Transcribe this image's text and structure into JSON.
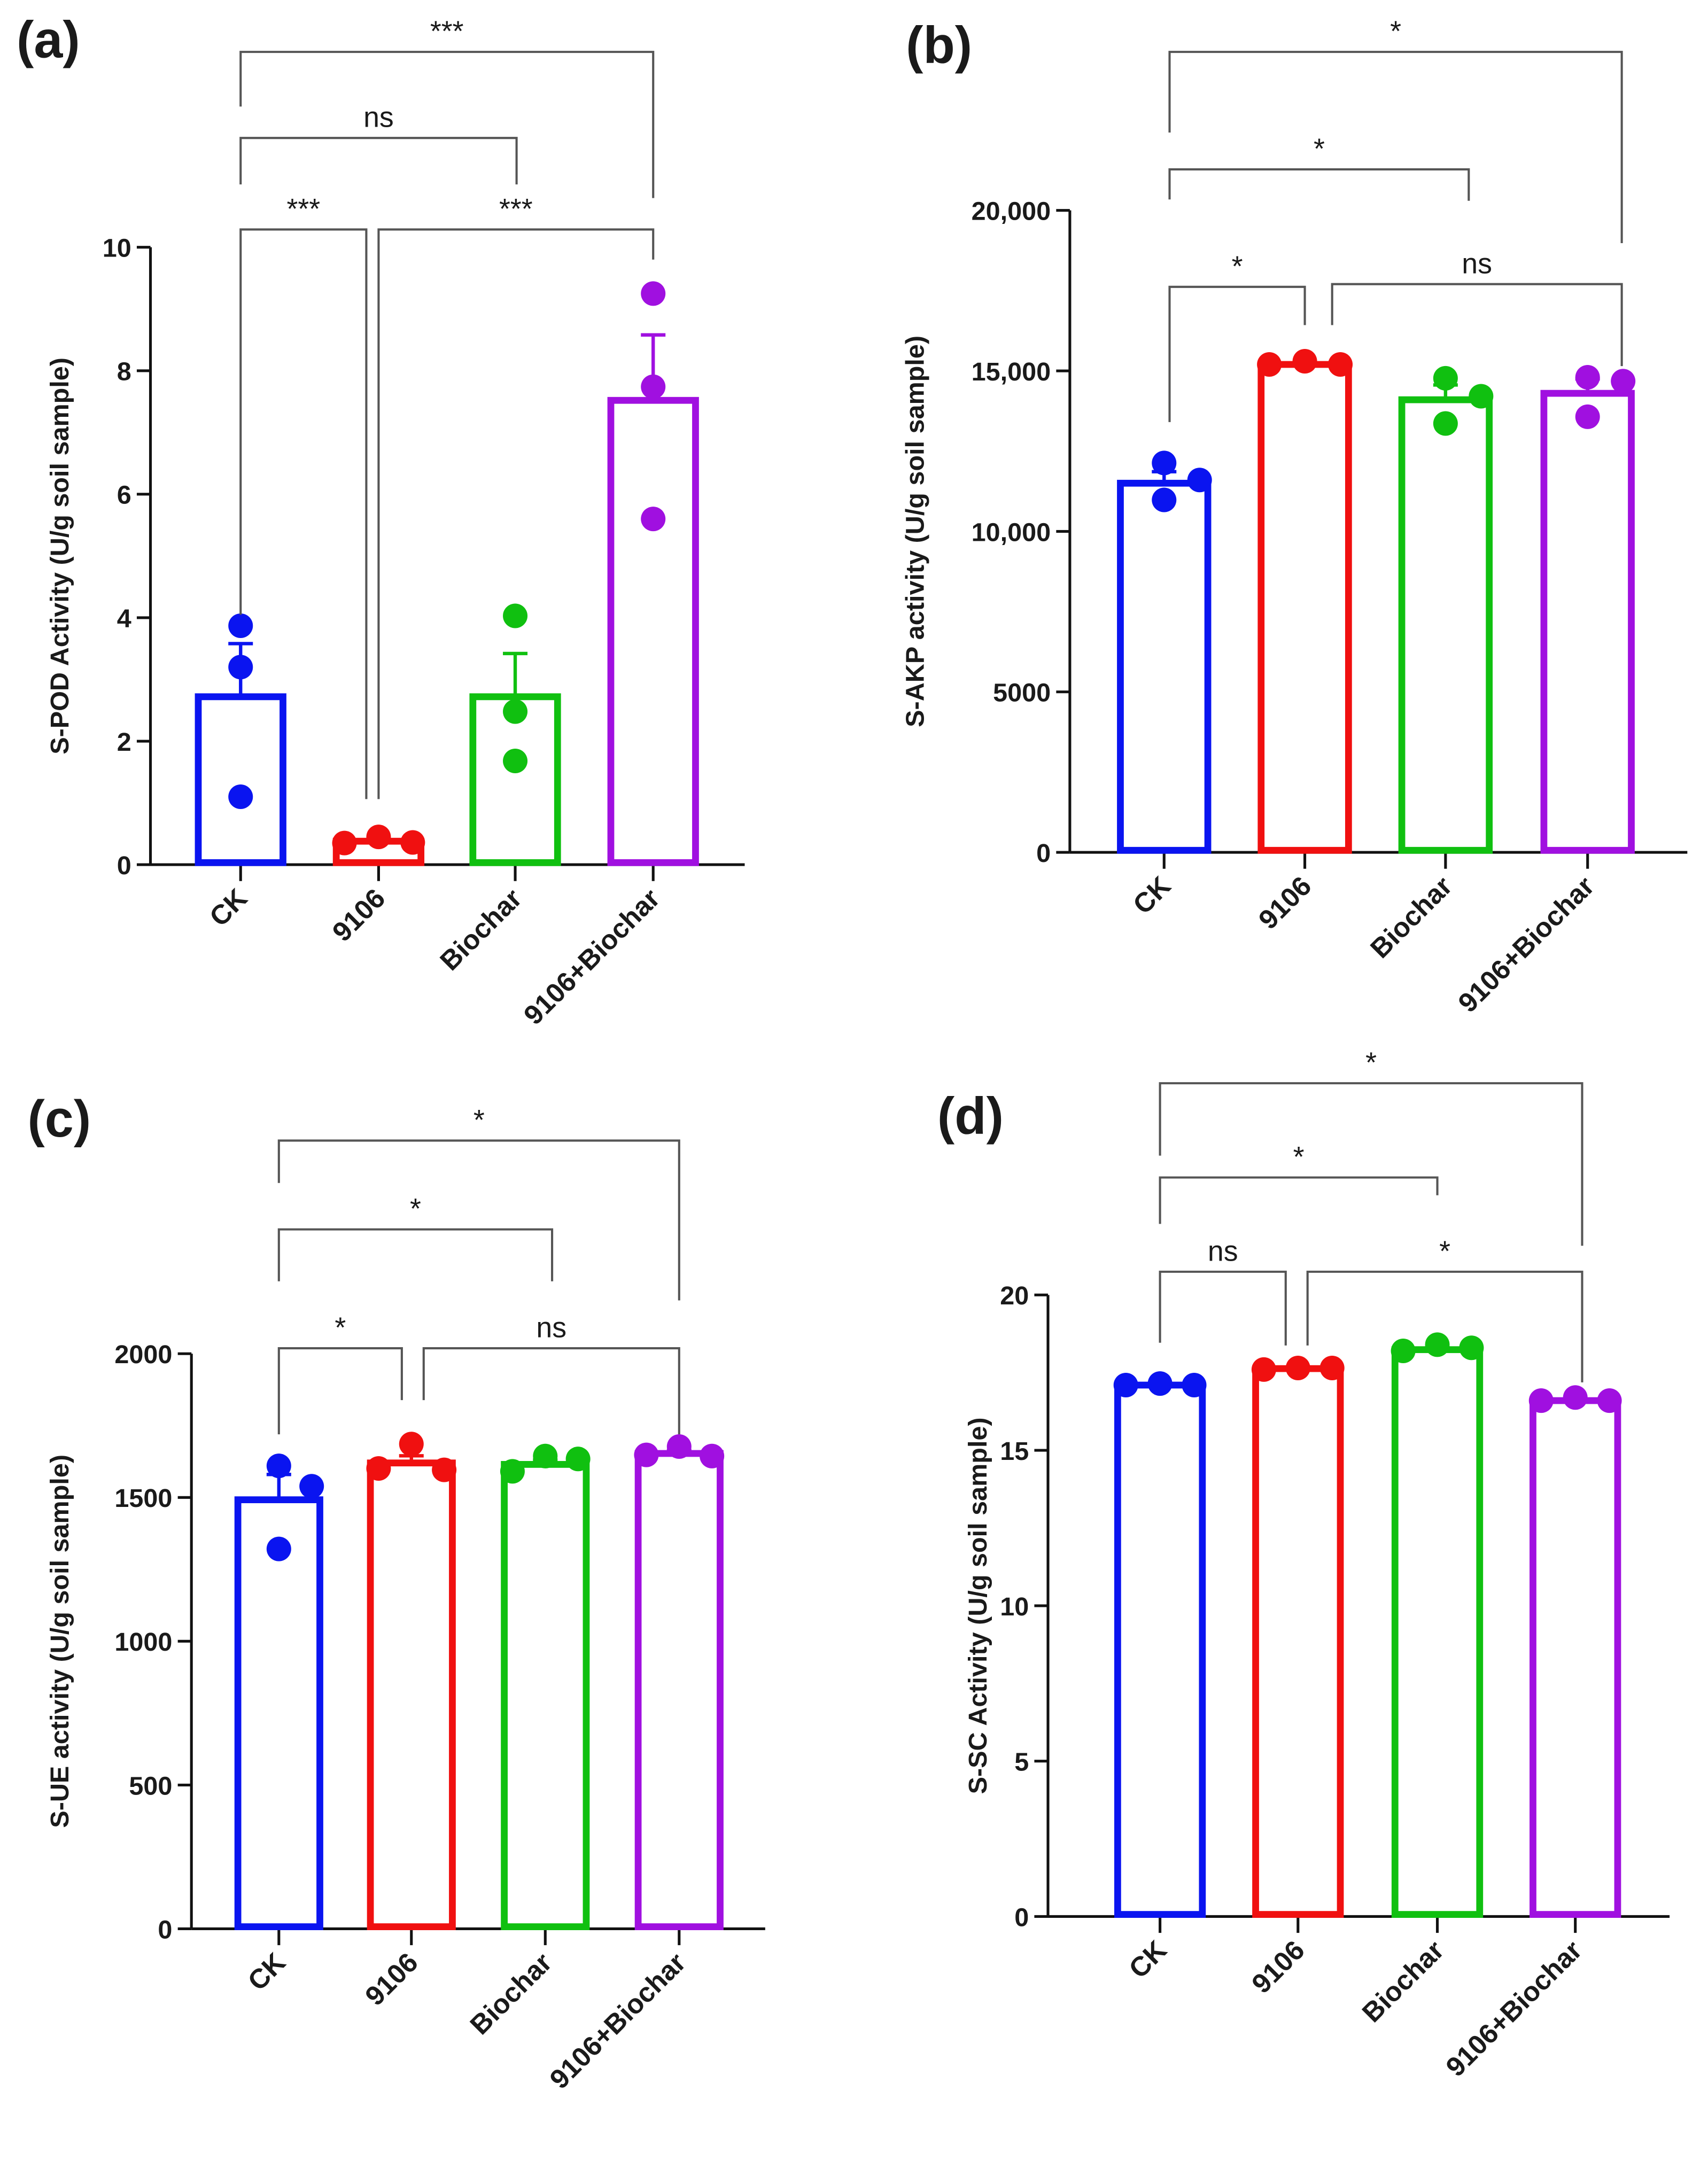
{
  "chart_data": [
    {
      "type": "bar",
      "panel_label": "(a)",
      "categories": [
        "CK",
        "9106",
        "Biochar",
        "9106+Biochar"
      ],
      "colors": [
        "#0a14f0",
        "#f01010",
        "#10c010",
        "#a010e0"
      ],
      "ylabel": "S-POD Activity (U/g soil sample)",
      "ylim": [
        0,
        10
      ],
      "yticks": [
        0,
        2,
        4,
        6,
        8,
        10
      ],
      "ytick_labels": [
        "0",
        "2",
        "4",
        "6",
        "8",
        "10"
      ],
      "means": [
        2.72,
        0.38,
        2.72,
        7.52
      ],
      "sem": [
        0.86,
        0.03,
        0.7,
        1.06
      ],
      "points": [
        [
          3.87,
          3.2,
          1.1
        ],
        [
          0.35,
          0.45,
          0.36
        ],
        [
          4.03,
          2.48,
          1.68
        ],
        [
          9.25,
          7.74,
          5.6
        ]
      ],
      "comparisons": [
        {
          "groups": [
            0,
            1
          ],
          "label": "***"
        },
        {
          "groups": [
            1,
            3
          ],
          "label": "***"
        },
        {
          "groups": [
            0,
            2
          ],
          "label": "ns"
        },
        {
          "groups": [
            0,
            3
          ],
          "label": "***"
        }
      ]
    },
    {
      "type": "bar",
      "panel_label": "(b)",
      "categories": [
        "CK",
        "9106",
        "Biochar",
        "9106+Biochar"
      ],
      "colors": [
        "#0a14f0",
        "#f01010",
        "#10c010",
        "#a010e0"
      ],
      "ylabel": "S-AKP activity (U/g soil sample)",
      "ylim": [
        0,
        20000
      ],
      "yticks": [
        0,
        5000,
        10000,
        15000,
        20000
      ],
      "ytick_labels": [
        "0",
        "5000",
        "10,000",
        "15,000",
        "20,000"
      ],
      "means": [
        11500,
        15200,
        14100,
        14300
      ],
      "sem": [
        360,
        50,
        460,
        450
      ],
      "points": [
        [
          12130,
          10980,
          11600
        ],
        [
          15200,
          15300,
          15200
        ],
        [
          14770,
          13360,
          14210
        ],
        [
          14800,
          13570,
          14680
        ]
      ],
      "comparisons": [
        {
          "groups": [
            0,
            1
          ],
          "label": "*"
        },
        {
          "groups": [
            1,
            3
          ],
          "label": "ns"
        },
        {
          "groups": [
            0,
            2
          ],
          "label": "*"
        },
        {
          "groups": [
            0,
            3
          ],
          "label": "*"
        }
      ]
    },
    {
      "type": "bar",
      "panel_label": "(c)",
      "categories": [
        "CK",
        "9106",
        "Biochar",
        "9106+Biochar"
      ],
      "colors": [
        "#0a14f0",
        "#f01010",
        "#10c010",
        "#a010e0"
      ],
      "ylabel": "S-UE activity (U/g soil sample)",
      "ylim": [
        0,
        2000
      ],
      "yticks": [
        0,
        500,
        1000,
        1500,
        2000
      ],
      "ytick_labels": [
        "0",
        "500",
        "1000",
        "1500",
        "2000"
      ],
      "means": [
        1492,
        1620,
        1615,
        1653
      ],
      "sem": [
        88,
        25,
        15,
        10
      ],
      "points": [
        [
          1610,
          1321,
          1539
        ],
        [
          1601,
          1686,
          1596
        ],
        [
          1591,
          1644,
          1634
        ],
        [
          1648,
          1677,
          1644
        ]
      ],
      "comparisons": [
        {
          "groups": [
            0,
            1
          ],
          "label": "*"
        },
        {
          "groups": [
            1,
            3
          ],
          "label": "ns"
        },
        {
          "groups": [
            0,
            2
          ],
          "label": "*"
        },
        {
          "groups": [
            0,
            3
          ],
          "label": "*"
        }
      ]
    },
    {
      "type": "bar",
      "panel_label": "(d)",
      "categories": [
        "CK",
        "9106",
        "Biochar",
        "9106+Biochar"
      ],
      "colors": [
        "#0a14f0",
        "#f01010",
        "#10c010",
        "#a010e0"
      ],
      "ylabel": "S-SC Activity (U/g soil sample)",
      "ylim": [
        0,
        20
      ],
      "yticks": [
        0,
        5,
        10,
        15,
        20
      ],
      "ytick_labels": [
        "0",
        "5",
        "10",
        "15",
        "20"
      ],
      "means": [
        17.1,
        17.63,
        18.24,
        16.6
      ],
      "sem": [
        0.03,
        0.03,
        0.06,
        0.03
      ],
      "points": [
        [
          17.1,
          17.15,
          17.1
        ],
        [
          17.6,
          17.65,
          17.65
        ],
        [
          18.2,
          18.4,
          18.3
        ],
        [
          16.6,
          16.7,
          16.6
        ]
      ],
      "comparisons": [
        {
          "groups": [
            0,
            1
          ],
          "label": "ns"
        },
        {
          "groups": [
            1,
            3
          ],
          "label": "*"
        },
        {
          "groups": [
            0,
            2
          ],
          "label": "*"
        },
        {
          "groups": [
            0,
            3
          ],
          "label": "*"
        }
      ]
    }
  ]
}
